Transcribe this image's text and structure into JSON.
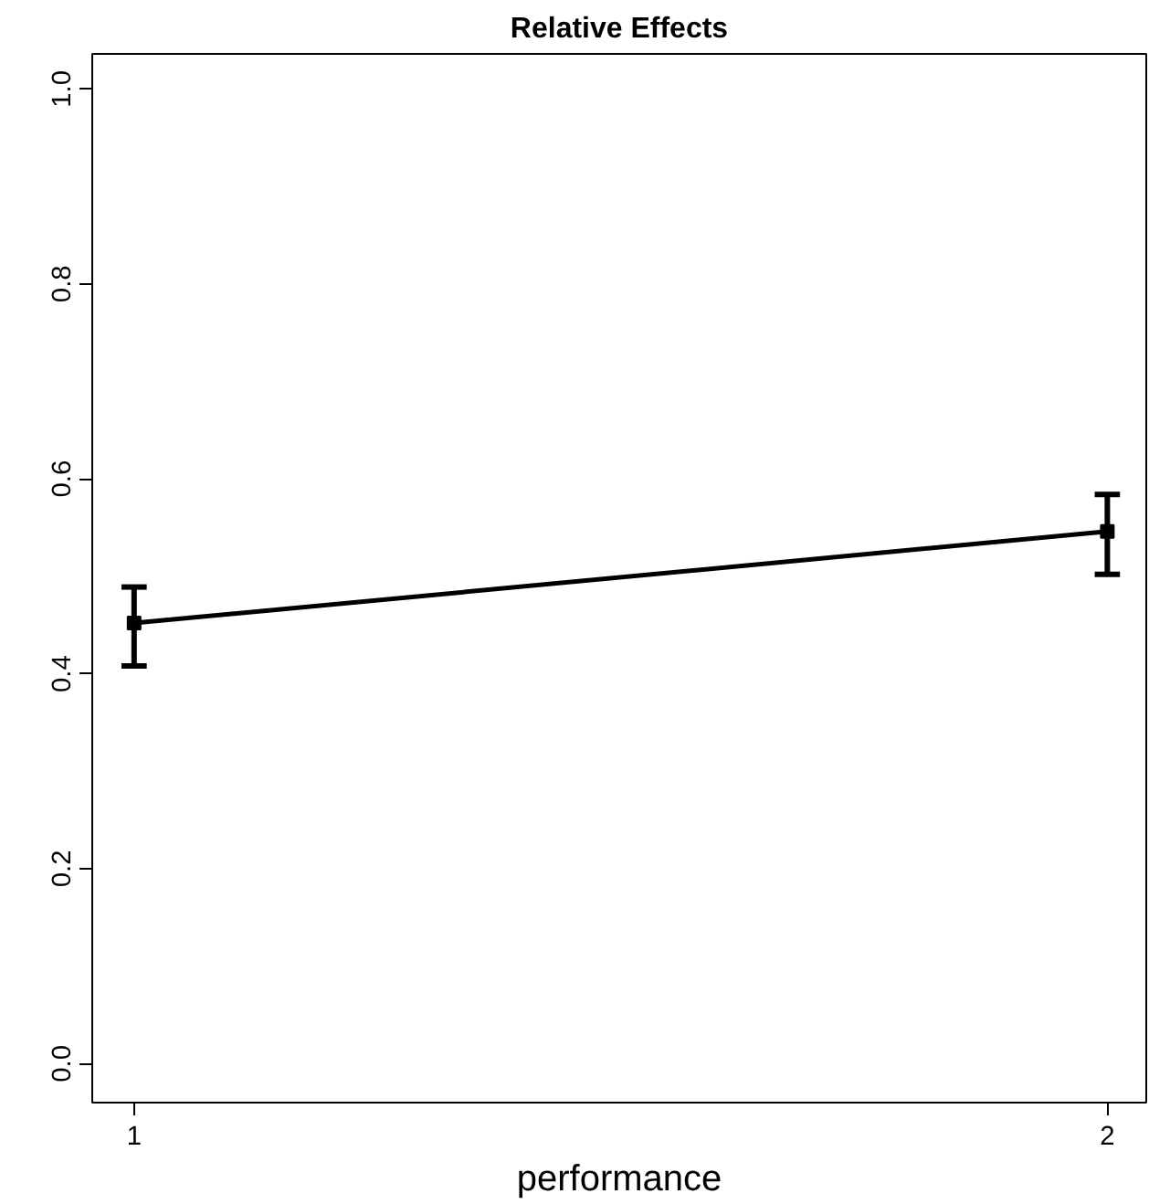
{
  "chart_data": {
    "type": "line",
    "title": "Relative Effects",
    "xlabel": "performance",
    "x": [
      1,
      2
    ],
    "values": [
      0.452,
      0.546
    ],
    "color": "#000000",
    "errors": [
      [
        0.408,
        0.489
      ],
      [
        0.502,
        0.584
      ]
    ],
    "xlim": [
      0.957,
      2.04
    ],
    "xticks": [
      1,
      2
    ],
    "ylim": [
      -0.04,
      1.036
    ],
    "yticks": [
      {
        "value": 0,
        "label": "0.0"
      },
      {
        "value": 0.2,
        "label": "0.2"
      },
      {
        "value": 0.4,
        "label": "0.4"
      },
      {
        "value": 0.6,
        "label": "0.6"
      },
      {
        "value": 0.8,
        "label": "0.8"
      },
      {
        "value": 1,
        "label": "1.0"
      }
    ],
    "marker": "square",
    "line_style": "solid",
    "grid": false
  }
}
